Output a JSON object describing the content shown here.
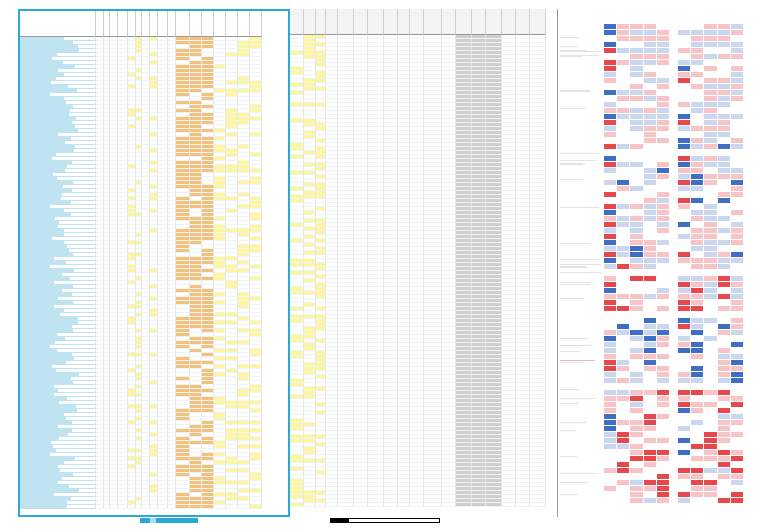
{
  "sheet": {
    "blue_table_headers": [
      "",
      "",
      "",
      "",
      "",
      "",
      "",
      "",
      "",
      "",
      "",
      "",
      "",
      "",
      "",
      "",
      "",
      ""
    ],
    "gray_table_headers": [
      "",
      "",
      "",
      "",
      "",
      "",
      "",
      "",
      "",
      "",
      "",
      "",
      "",
      "",
      "",
      "",
      "",
      ""
    ],
    "row_count": 118,
    "top_marks": [
      "",
      "",
      "",
      ""
    ]
  },
  "colors": {
    "accent_blue": "#2aa8d8",
    "highlight_yellow": "#fff59a",
    "highlight_orange": "#f2c27a",
    "heat_red": "#e8474c",
    "heat_pink": "#f7c4c8",
    "heat_blue": "#3f6fc4",
    "heat_lightblue": "#cad7ee"
  }
}
